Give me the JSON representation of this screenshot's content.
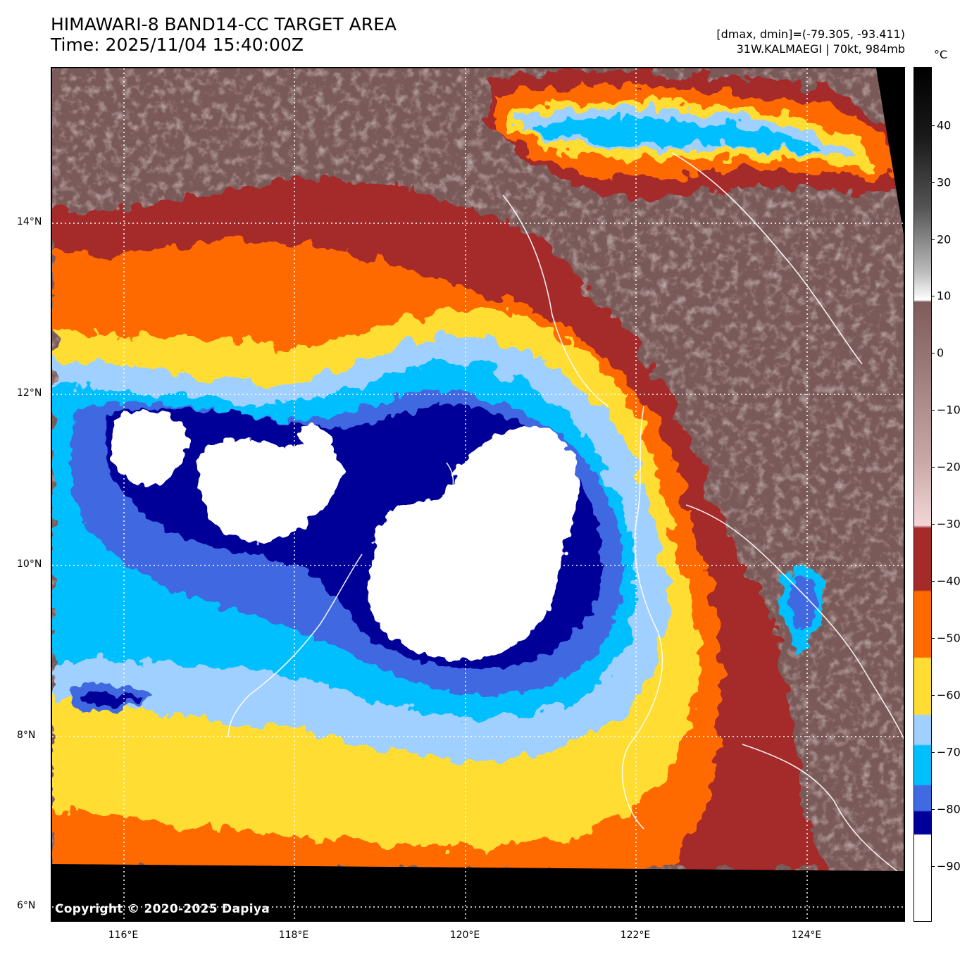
{
  "header": {
    "title_line1": "HIMAWARI-8 BAND14-CC TARGET AREA",
    "title_line2": "Time: 2025/11/04 15:40:00Z",
    "range_text": "[dmax, dmin]=(-79.305, -93.411)",
    "storm_text": "31W.KALMAEGI | 70kt, 984mb"
  },
  "map": {
    "copyright": "Copyright © 2020-2025 Dapiya",
    "lat_labels": [
      "14°N",
      "12°N",
      "10°N",
      "8°N",
      "6°N"
    ],
    "lon_labels": [
      "116°E",
      "118°E",
      "120°E",
      "122°E",
      "124°E"
    ],
    "colors": {
      "background": "#7a5a58",
      "cold_core": "#ffffff",
      "deep_blue": "#000099",
      "royal_blue": "#4169e1",
      "sky_blue": "#00bfff",
      "light_blue": "#a0d0ff",
      "yellow": "#ffdd33",
      "orange": "#ff6a00",
      "brick": "#a52a2a",
      "pink": "#f0d0d0"
    }
  },
  "colorbar": {
    "unit": "°C",
    "ticks": [
      "40",
      "30",
      "20",
      "10",
      "0",
      "−10",
      "−20",
      "−30",
      "−40",
      "−50",
      "−60",
      "−70",
      "−80",
      "−90"
    ]
  }
}
